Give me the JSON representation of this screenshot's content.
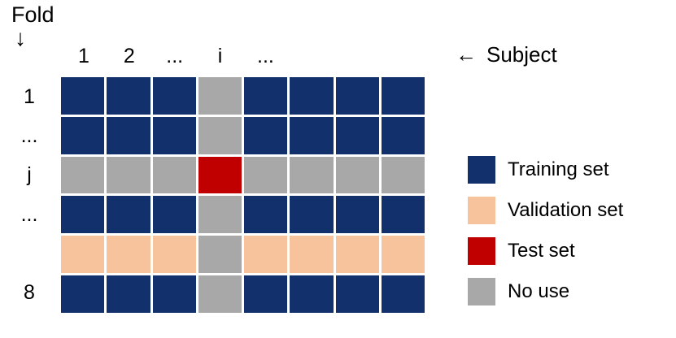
{
  "colors": {
    "training": "#12306b",
    "validation": "#f6c39c",
    "test": "#c00000",
    "nouse": "#a8a8a8"
  },
  "axes": {
    "fold_label": "Fold",
    "fold_arrow": "↓",
    "subject_arrow": "←",
    "subject_label": "Subject",
    "col_labels": [
      "1",
      "2",
      "...",
      "i",
      "...",
      "",
      "",
      ""
    ],
    "row_labels": [
      "1",
      "...",
      "j",
      "...",
      "",
      "8"
    ]
  },
  "grid": {
    "rows": [
      [
        "training",
        "training",
        "training",
        "nouse",
        "training",
        "training",
        "training",
        "training"
      ],
      [
        "training",
        "training",
        "training",
        "nouse",
        "training",
        "training",
        "training",
        "training"
      ],
      [
        "nouse",
        "nouse",
        "nouse",
        "test",
        "nouse",
        "nouse",
        "nouse",
        "nouse"
      ],
      [
        "training",
        "training",
        "training",
        "nouse",
        "training",
        "training",
        "training",
        "training"
      ],
      [
        "validation",
        "validation",
        "validation",
        "nouse",
        "validation",
        "validation",
        "validation",
        "validation"
      ],
      [
        "training",
        "training",
        "training",
        "nouse",
        "training",
        "training",
        "training",
        "training"
      ]
    ]
  },
  "legend": [
    {
      "key": "training",
      "label": "Training set"
    },
    {
      "key": "validation",
      "label": "Validation set"
    },
    {
      "key": "test",
      "label": "Test set"
    },
    {
      "key": "nouse",
      "label": "No use"
    }
  ]
}
